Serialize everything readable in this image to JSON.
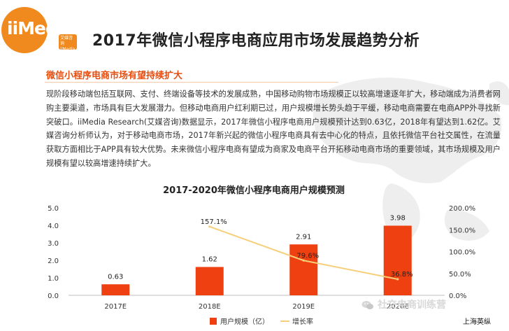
{
  "brand": {
    "logo_text": "iiMedia",
    "logo_sub": "艾媒咨询 iiMedia Research"
  },
  "page": {
    "title": "2017年微信小程序电商应用市场发展趋势分析",
    "section_heading": "微信小程序电商市场有望持续扩大",
    "body": "现阶段移动端包括互联网、支付、终端设备等技术的发展成熟，中国移动购物市场规模正以较高增速逐年扩大，移动端成为消费者网购主要渠道，市场具有巨大发展潜力。但移动电商用户红利期已过，用户规模增长势头趋于平缓，移动电商需要在电商APP外寻找新突破口。iiMedia Research(艾媒咨询)数据显示，2017年微信小程序电商用户规模预计达到0.63亿，2018年有望达到1.62亿。艾媒咨询分析师认为，对于移动电商市场，2017年新兴起的微信小程序电商具有去中心化的特点，且依托微信平台社交属性，在流量获取方面相比于APP具有较大优势。未来微信小程序电商有望成为商家及电商平台开拓移动电商市场的重要领域，其市场规模及用户规模有望以较高增速持续扩大。"
  },
  "chart_data": {
    "type": "bar",
    "title": "2017-2020年微信小程序电商用户规模预测",
    "categories": [
      "2017E",
      "2018E",
      "2019E",
      "2020E"
    ],
    "series": [
      {
        "name": "用户规模（亿）",
        "type": "bar",
        "axis": "left",
        "color": "#ee4010",
        "values": [
          0.63,
          1.62,
          2.91,
          3.98
        ],
        "labels": [
          "0.63",
          "1.62",
          "2.91",
          "3.98"
        ]
      },
      {
        "name": "增长率",
        "type": "line",
        "axis": "right",
        "color": "#f6cf7a",
        "values": [
          null,
          157.1,
          79.6,
          36.8
        ],
        "labels": [
          "",
          "157.1%",
          "79.6%",
          "36.8%"
        ]
      }
    ],
    "y_left": {
      "ylim": [
        0,
        5
      ],
      "ticks": [
        "0.0",
        "1.0",
        "2.0",
        "3.0",
        "4.0",
        "5.0"
      ]
    },
    "y_right": {
      "ylim": [
        0,
        200
      ],
      "ticks": [
        "0.0%",
        "50.0%",
        "100.0%",
        "150.0%",
        "200.0%"
      ]
    },
    "grid": false,
    "legend": "bottom"
  },
  "watermark": "社交电商训练营",
  "attribution": "上海英纵",
  "icons": {
    "watermark": "wechat-icon"
  }
}
